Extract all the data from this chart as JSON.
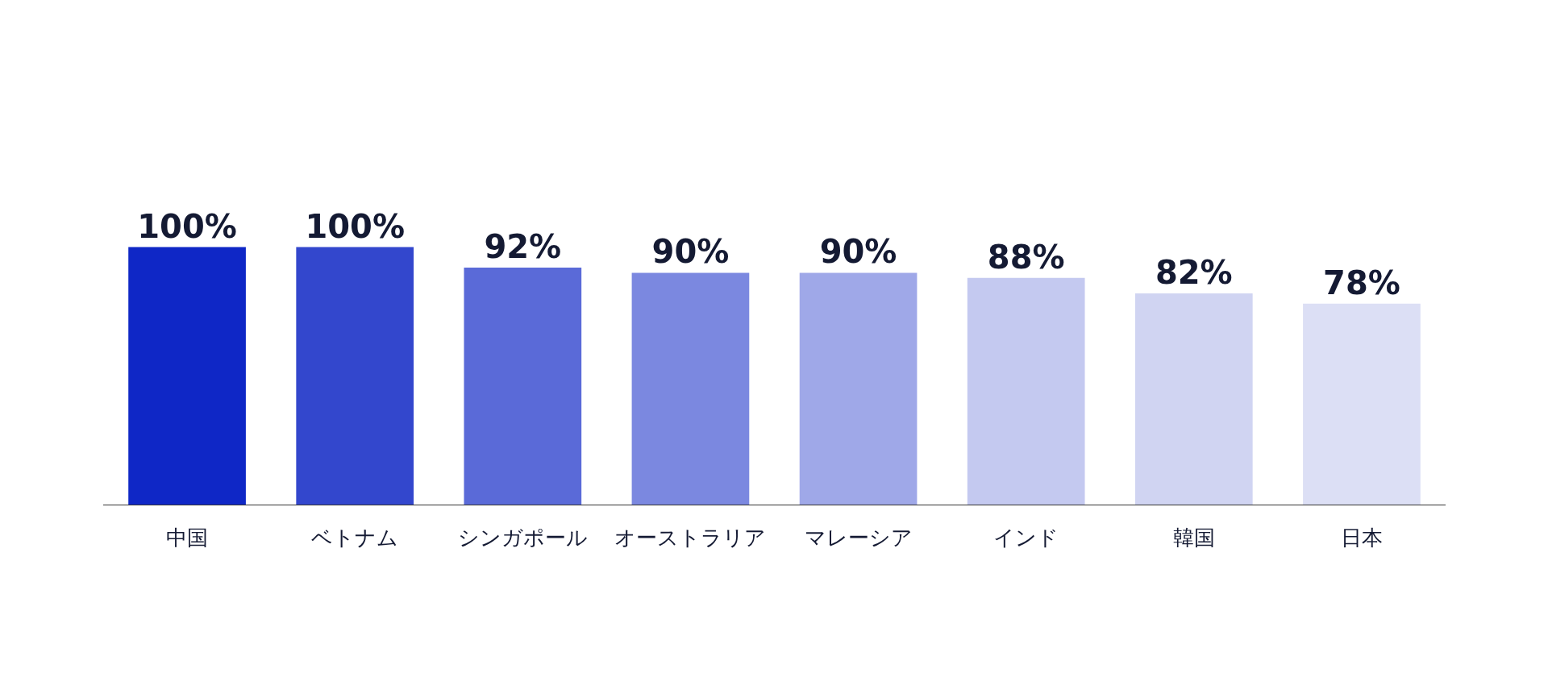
{
  "chart_data": {
    "type": "bar",
    "categories": [
      "中国",
      "ベトナム",
      "シンガポール",
      "オーストラリア",
      "マレーシア",
      "インド",
      "韓国",
      "日本"
    ],
    "values": [
      100,
      100,
      92,
      90,
      90,
      88,
      82,
      78
    ],
    "value_labels": [
      "100%",
      "100%",
      "92%",
      "90%",
      "90%",
      "88%",
      "82%",
      "78%"
    ],
    "colors": [
      "#0f27c6",
      "#3347cd",
      "#5a6ad8",
      "#7b88e0",
      "#9fa8e8",
      "#c4c9f0",
      "#d0d4f2",
      "#dcdff5"
    ]
  }
}
